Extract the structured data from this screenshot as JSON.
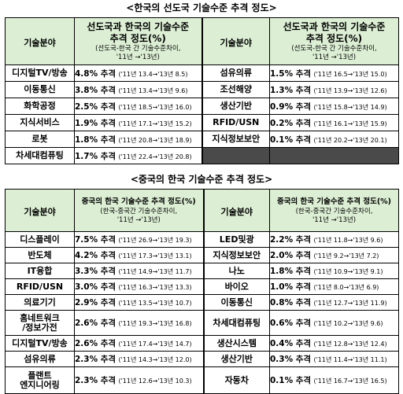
{
  "advanced": {
    "title": "<한국의 선도국 기술수준 추격 정도>",
    "field_header": "기술분야",
    "value_header": {
      "main": "선도국과 한국의 기술수준 추격 정도(%)",
      "sub1": "(선도국-한국 간 기술수준차이,",
      "sub2": "'11년 →'13년)"
    },
    "left_rows": [
      {
        "field": "디지털TV/방송",
        "pct": "4.8% 추격",
        "detail": "('11년 13.4→'13년 8.5)"
      },
      {
        "field": "이동통신",
        "pct": "3.8% 추격",
        "detail": "('11년 13.4→'13년 9.6)"
      },
      {
        "field": "화학공정",
        "pct": "2.5% 추격",
        "detail": "('11년 18.5→'13년 16.0)"
      },
      {
        "field": "지식서비스",
        "pct": "1.9% 추격",
        "detail": "('11년 17.1→'13년 15.2)"
      },
      {
        "field": "로봇",
        "pct": "1.8% 추격",
        "detail": "('11년 20.8→'13년 18.9)"
      },
      {
        "field": "차세대컴퓨팅",
        "pct": "1.7% 추격",
        "detail": "('11년 22.4→'13년 20.8)"
      }
    ],
    "right_rows": [
      {
        "field": "섬유의류",
        "pct": "1.5% 추격",
        "detail": "('11년 16.5→'13년 15.0)"
      },
      {
        "field": "조선해양",
        "pct": "1.3% 추격",
        "detail": "('11년 13.9→'13년 12.6)"
      },
      {
        "field": "생산기반",
        "pct": "0.9% 추격",
        "detail": "('11년 15.8→'13년 14.9)"
      },
      {
        "field": "RFID/USN",
        "pct": "0.2% 추격",
        "detail": "('11년 16.1→'13년 15.9)"
      },
      {
        "field": "지식정보보안",
        "pct": "0.1% 추격",
        "detail": "('11년 20.2→'13년 20.1)"
      }
    ]
  },
  "china": {
    "title": "<중국의 한국 기술수준 추격 정도>",
    "field_header": "기술분야",
    "value_header": {
      "main": "중국의 한국 기술수준 추격 정도(%)",
      "sub1": "(한국-중국간 기술수준차이,",
      "sub2": "'11년 →'13년)"
    },
    "left_rows": [
      {
        "field": "디스플레이",
        "pct": "7.5% 추격",
        "detail": "('11년 26.9→'13년 19.3)"
      },
      {
        "field": "반도체",
        "pct": "4.2% 추격",
        "detail": "('11년 17.3→'13년 13.1)"
      },
      {
        "field": "IT융합",
        "pct": "3.3% 추격",
        "detail": "('11년 14.9→'13년 11.7)"
      },
      {
        "field": "RFID/USN",
        "pct": "3.0% 추격",
        "detail": "('11년 16.3→'13년 13.3)"
      },
      {
        "field": "의료기기",
        "pct": "2.9% 추격",
        "detail": "('11년 13.5→'13년 10.7)"
      },
      {
        "field": "홈네트워크/정보가전",
        "field1": "홈네트워크",
        "field2": "/정보가전",
        "pct": "2.6% 추격",
        "detail": "('11년 19.3→'13년 16.8)"
      },
      {
        "field": "디지털TV/방송",
        "pct": "2.6% 추격",
        "detail": "('11년 17.4→'13년 14.7)"
      },
      {
        "field": "섬유의류",
        "pct": "2.3% 추격",
        "detail": "('11년 14.3→'13년 12.0)"
      },
      {
        "field": "플랜트 엔지니어링",
        "field1": "플랜트",
        "field2": "엔지니어링",
        "pct": "2.3% 추격",
        "detail": "('11년 12.6→'13년 10.3)"
      }
    ],
    "right_rows": [
      {
        "field": "LED및광",
        "pct": "2.2% 추격",
        "detail": "('11년 11.8→'13년 9.6)"
      },
      {
        "field": "지식정보보안",
        "pct": "2.0% 추격",
        "detail": "('11년 9.2→'13년 7.2)"
      },
      {
        "field": "나노",
        "pct": "1.8% 추격",
        "detail": "('11년 10.9→'13년 9.1)"
      },
      {
        "field": "바이오",
        "pct": "1.0% 추격",
        "detail": "('11년 8.0→'13년 6.9)"
      },
      {
        "field": "이동통신",
        "pct": "0.8% 추격",
        "detail": "('11년 12.7→'13년 11.9)"
      },
      {
        "field": "차세대컴퓨팅",
        "pct": "0.6% 추격",
        "detail": "('11년 10.2→'13년 9.6)"
      },
      {
        "field": "생산시스템",
        "pct": "0.4% 추격",
        "detail": "('11년 12.8→'13년 12.4)"
      },
      {
        "field": "생산기반",
        "pct": "0.3% 추격",
        "detail": "('11년 11.4→'13년 11.1)"
      },
      {
        "field": "자동차",
        "pct": "0.1% 추격",
        "detail": "('11년 16.7→'13년 16.5)"
      }
    ]
  }
}
